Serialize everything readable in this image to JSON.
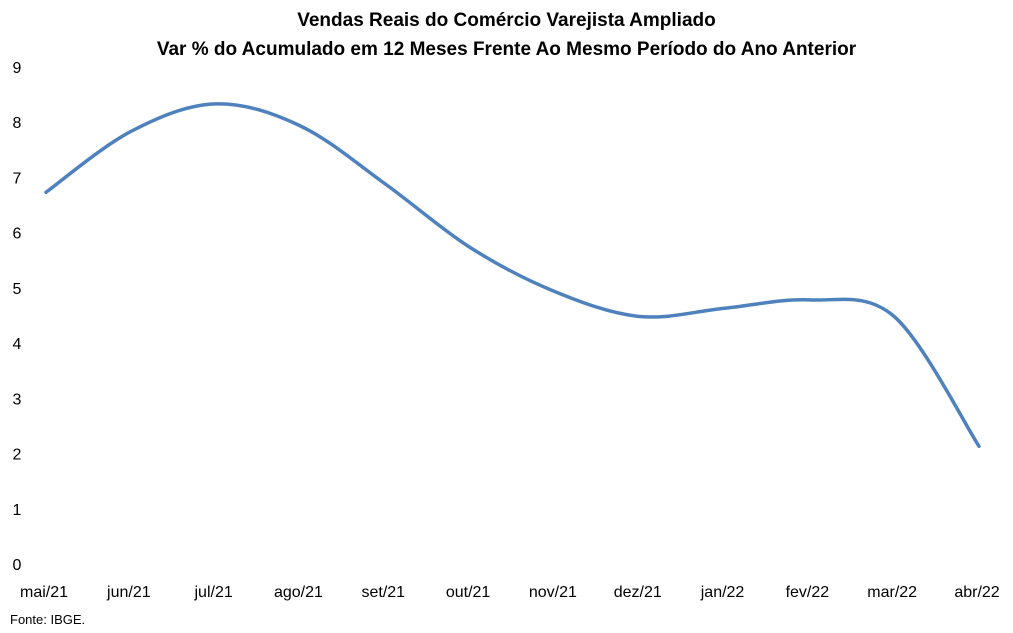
{
  "chart_data": {
    "type": "line",
    "title": "Vendas Reais do Comércio Varejista Ampliado",
    "subtitle": "Var % do Acumulado em 12 Meses Frente Ao Mesmo Período do Ano Anterior",
    "xlabel": "",
    "ylabel": "",
    "categories": [
      "mai/21",
      "jun/21",
      "jul/21",
      "ago/21",
      "set/21",
      "out/21",
      "nov/21",
      "dez/21",
      "jan/22",
      "fev/22",
      "mar/22",
      "abr/22"
    ],
    "series": [
      {
        "values": [
          6.75,
          7.85,
          8.35,
          7.95,
          6.9,
          5.75,
          4.95,
          4.5,
          4.65,
          4.8,
          4.5,
          2.15
        ]
      }
    ],
    "ylim": [
      0,
      9
    ],
    "yticks": [
      0,
      1,
      2,
      3,
      4,
      5,
      6,
      7,
      8,
      9
    ],
    "grid": false,
    "legend": "none",
    "line_color": "#4f81bd"
  },
  "source": "Fonte: IBGE."
}
